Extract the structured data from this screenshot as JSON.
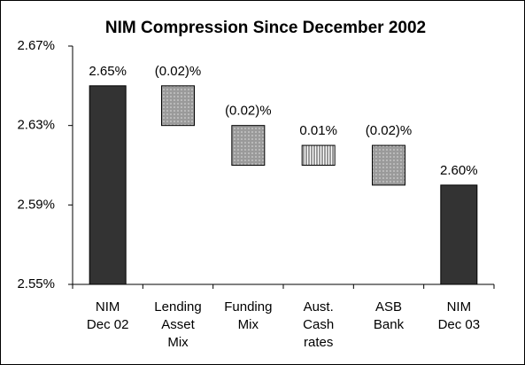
{
  "chart_data": {
    "type": "waterfall",
    "title": "NIM Compression Since December 2002",
    "categories": [
      [
        "NIM",
        "Dec 02"
      ],
      [
        "Lending",
        "Asset",
        "Mix"
      ],
      [
        "Funding",
        "Mix"
      ],
      [
        "Aust.",
        "Cash",
        "rates"
      ],
      [
        "ASB",
        "Bank"
      ],
      [
        "NIM",
        "Dec 03"
      ]
    ],
    "kinds": [
      "total",
      "delta",
      "delta",
      "delta",
      "delta",
      "total"
    ],
    "values": [
      2.65,
      -0.02,
      -0.02,
      0.01,
      -0.02,
      2.6
    ],
    "value_labels": [
      "2.65%",
      "(0.02)%",
      "(0.02)%",
      "0.01%",
      "(0.02)%",
      "2.60%"
    ],
    "colors": {
      "total": "#333333",
      "decrease": "#a0a0a0",
      "increase": "#ffffff"
    },
    "ylim": [
      2.55,
      2.67
    ],
    "yticks": [
      {
        "value": 2.55,
        "label": "2.55%"
      },
      {
        "value": 2.59,
        "label": "2.59%"
      },
      {
        "value": 2.63,
        "label": "2.63%"
      },
      {
        "value": 2.67,
        "label": "2.67%"
      }
    ]
  }
}
